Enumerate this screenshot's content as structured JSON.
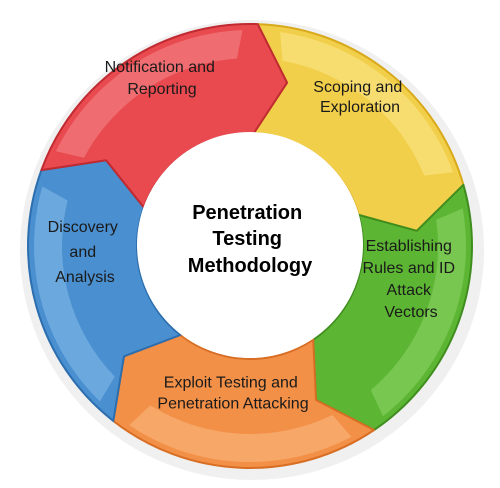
{
  "diagram": {
    "center": {
      "lines": [
        "Penetration",
        "Testing",
        "Methodology"
      ]
    },
    "segments": [
      {
        "key": "scoping",
        "lines": [
          "Scoping and",
          "Exploration"
        ],
        "color": "#f2cf4a",
        "highlight": "#fbe98e",
        "edge": "#d9a91c"
      },
      {
        "key": "rules",
        "lines": [
          "Establishing",
          "Rules and ID",
          "Attack",
          "Vectors"
        ],
        "color": "#5cb633",
        "highlight": "#8fd567",
        "edge": "#3f8d1e"
      },
      {
        "key": "exploit",
        "lines": [
          "Exploit Testing and",
          "Penetration Attacking"
        ],
        "color": "#f39048",
        "highlight": "#f9bb85",
        "edge": "#d86e24"
      },
      {
        "key": "discovery",
        "lines": [
          "Discovery",
          "and",
          "Analysis"
        ],
        "color": "#4a8fcf",
        "highlight": "#86bdeb",
        "edge": "#2c6eae"
      },
      {
        "key": "notification",
        "lines": [
          "Notification and",
          "Reporting"
        ],
        "color": "#e84a50",
        "highlight": "#f48a8d",
        "edge": "#c02a30"
      }
    ]
  }
}
